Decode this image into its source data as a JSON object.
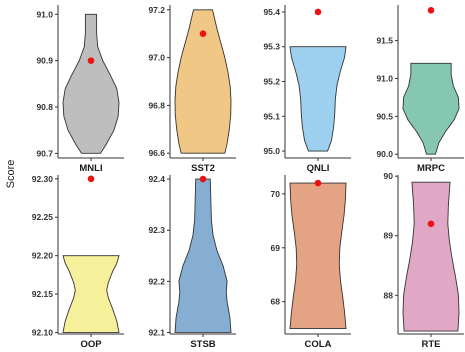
{
  "chart_data": {
    "type": "violin",
    "ylabel": "Score",
    "marker_color": "#ee1111",
    "panels": [
      {
        "name": "MNLI",
        "color": "#bebebe",
        "ylim": [
          90.69,
          91.02
        ],
        "yticks": [
          90.7,
          90.8,
          90.9,
          91.0
        ],
        "ytick_labels": [
          "90.7",
          "90.8",
          "90.9",
          "91.0"
        ],
        "vmin": 90.7,
        "vmax": 91.0,
        "profile": [
          [
            90.7,
            0.34
          ],
          [
            90.72,
            0.55
          ],
          [
            90.75,
            0.82
          ],
          [
            90.78,
            0.97
          ],
          [
            90.81,
            1.0
          ],
          [
            90.84,
            0.92
          ],
          [
            90.87,
            0.68
          ],
          [
            90.9,
            0.42
          ],
          [
            90.93,
            0.24
          ],
          [
            90.96,
            0.2
          ],
          [
            90.985,
            0.2
          ],
          [
            91.0,
            0.2
          ]
        ],
        "point": 90.9
      },
      {
        "name": "SST2",
        "color": "#f0c785",
        "ylim": [
          96.58,
          97.22
        ],
        "yticks": [
          96.6,
          96.8,
          97.0,
          97.2
        ],
        "ytick_labels": [
          "96.6",
          "96.8",
          "97.0",
          "97.2"
        ],
        "vmin": 96.6,
        "vmax": 97.2,
        "profile": [
          [
            96.6,
            0.78
          ],
          [
            96.64,
            0.86
          ],
          [
            96.7,
            0.94
          ],
          [
            96.76,
            0.99
          ],
          [
            96.82,
            1.0
          ],
          [
            96.88,
            0.97
          ],
          [
            96.94,
            0.89
          ],
          [
            97.0,
            0.78
          ],
          [
            97.06,
            0.64
          ],
          [
            97.12,
            0.5
          ],
          [
            97.17,
            0.4
          ],
          [
            97.2,
            0.34
          ]
        ],
        "point": 97.1
      },
      {
        "name": "QNLI",
        "color": "#9dcfef",
        "ylim": [
          94.98,
          95.42
        ],
        "yticks": [
          95.0,
          95.1,
          95.2,
          95.3,
          95.4
        ],
        "ytick_labels": [
          "95.0",
          "95.1",
          "95.2",
          "95.3",
          "95.4"
        ],
        "vmin": 95.0,
        "vmax": 95.3,
        "profile": [
          [
            95.0,
            0.34
          ],
          [
            95.03,
            0.48
          ],
          [
            95.07,
            0.56
          ],
          [
            95.11,
            0.6
          ],
          [
            95.15,
            0.62
          ],
          [
            95.19,
            0.68
          ],
          [
            95.23,
            0.8
          ],
          [
            95.27,
            0.95
          ],
          [
            95.3,
            1.0
          ]
        ],
        "point": 95.4
      },
      {
        "name": "MRPC",
        "color": "#85c7b0",
        "ylim": [
          89.95,
          91.97
        ],
        "yticks": [
          90.0,
          90.5,
          91.0,
          91.5
        ],
        "ytick_labels": [
          "90.0",
          "90.5",
          "91.0",
          "91.5"
        ],
        "vmin": 90.0,
        "vmax": 91.2,
        "profile": [
          [
            90.0,
            0.16
          ],
          [
            90.15,
            0.28
          ],
          [
            90.3,
            0.52
          ],
          [
            90.45,
            0.82
          ],
          [
            90.6,
            1.0
          ],
          [
            90.75,
            0.98
          ],
          [
            90.9,
            0.8
          ],
          [
            91.05,
            0.72
          ],
          [
            91.2,
            0.72
          ]
        ],
        "point": 91.9
      },
      {
        "name": "QQP",
        "color": "#f6f09a",
        "ylim": [
          92.098,
          92.305
        ],
        "yticks": [
          92.1,
          92.15,
          92.2,
          92.25,
          92.3
        ],
        "ytick_labels": [
          "92.10",
          "92.15",
          "92.20",
          "92.25",
          "92.30"
        ],
        "vmin": 92.1,
        "vmax": 92.2,
        "profile": [
          [
            92.1,
            1.0
          ],
          [
            92.115,
            0.92
          ],
          [
            92.13,
            0.78
          ],
          [
            92.145,
            0.62
          ],
          [
            92.155,
            0.56
          ],
          [
            92.165,
            0.62
          ],
          [
            92.18,
            0.78
          ],
          [
            92.19,
            0.92
          ],
          [
            92.2,
            1.0
          ]
        ],
        "point": 92.3
      },
      {
        "name": "STSB",
        "color": "#85aed2",
        "ylim": [
          92.097,
          92.408
        ],
        "yticks": [
          92.1,
          92.2,
          92.3,
          92.4
        ],
        "ytick_labels": [
          "92.1",
          "92.2",
          "92.3",
          "92.4"
        ],
        "vmin": 92.1,
        "vmax": 92.4,
        "profile": [
          [
            92.1,
            1.0
          ],
          [
            92.13,
            0.96
          ],
          [
            92.16,
            0.86
          ],
          [
            92.18,
            0.83
          ],
          [
            92.2,
            0.86
          ],
          [
            92.23,
            0.72
          ],
          [
            92.26,
            0.5
          ],
          [
            92.29,
            0.36
          ],
          [
            92.32,
            0.3
          ],
          [
            92.36,
            0.28
          ],
          [
            92.4,
            0.26
          ]
        ],
        "point": 92.4
      },
      {
        "name": "COLA",
        "color": "#e4a383",
        "ylim": [
          67.4,
          70.35
        ],
        "yticks": [
          68,
          69,
          70
        ],
        "ytick_labels": [
          "68",
          "69",
          "70"
        ],
        "vmin": 67.5,
        "vmax": 70.2,
        "profile": [
          [
            67.5,
            1.0
          ],
          [
            67.8,
            0.95
          ],
          [
            68.1,
            0.88
          ],
          [
            68.4,
            0.8
          ],
          [
            68.7,
            0.76
          ],
          [
            69.0,
            0.78
          ],
          [
            69.3,
            0.85
          ],
          [
            69.6,
            0.93
          ],
          [
            69.9,
            0.98
          ],
          [
            70.2,
            1.0
          ]
        ],
        "point": 70.2
      },
      {
        "name": "RTE",
        "color": "#e0a8c6",
        "ylim": [
          87.35,
          90.02
        ],
        "yticks": [
          88,
          89,
          90
        ],
        "ytick_labels": [
          "88",
          "89",
          "90"
        ],
        "vmin": 87.4,
        "vmax": 89.9,
        "profile": [
          [
            87.4,
            0.96
          ],
          [
            87.7,
            1.0
          ],
          [
            88.0,
            0.98
          ],
          [
            88.3,
            0.88
          ],
          [
            88.6,
            0.76
          ],
          [
            88.9,
            0.66
          ],
          [
            89.2,
            0.6
          ],
          [
            89.5,
            0.62
          ],
          [
            89.9,
            0.68
          ]
        ],
        "point": 89.2
      }
    ]
  }
}
